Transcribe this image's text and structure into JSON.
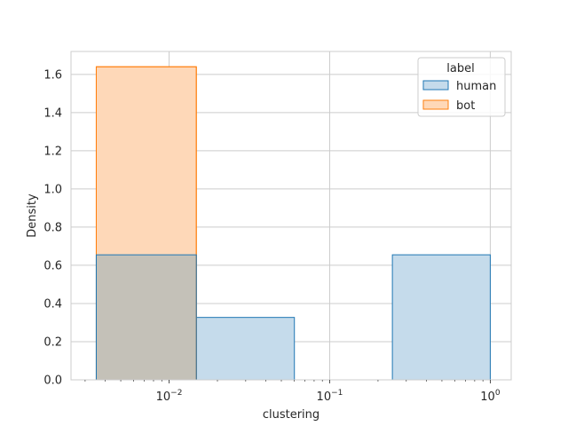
{
  "chart_data": {
    "type": "histogram",
    "xlabel": "clustering",
    "ylabel": "Density",
    "x_scale": "log",
    "x_ticks": [
      {
        "value": 0.01,
        "base": "10",
        "exp": "−2"
      },
      {
        "value": 0.1,
        "base": "10",
        "exp": "−1"
      },
      {
        "value": 1,
        "base": "10",
        "exp": "0"
      }
    ],
    "y_ticks": [
      "0.0",
      "0.2",
      "0.4",
      "0.6",
      "0.8",
      "1.0",
      "1.2",
      "1.4",
      "1.6"
    ],
    "ylim": [
      0,
      1.72
    ],
    "xlim": [
      0.00245,
      1.35
    ],
    "grid": true,
    "legend": {
      "title": "label",
      "placement": "top-right",
      "entries": [
        "human",
        "bot"
      ]
    },
    "series": [
      {
        "name": "human",
        "fill": "#c5dbeb",
        "edge": "#1f77b4",
        "bins": [
          {
            "x0": 0.00352,
            "x1": 0.01478,
            "density": 0.655
          },
          {
            "x0": 0.01478,
            "x1": 0.0603,
            "density": 0.327
          },
          {
            "x0": 0.0603,
            "x1": 0.2457,
            "density": 0.0
          },
          {
            "x0": 0.2457,
            "x1": 1.0,
            "density": 0.655
          }
        ]
      },
      {
        "name": "bot",
        "fill": "#fed8b8",
        "edge": "#ff7f0e",
        "bins": [
          {
            "x0": 0.00352,
            "x1": 0.01478,
            "density": 1.64
          }
        ]
      }
    ],
    "overlap_fill": "#c4c1b8"
  }
}
